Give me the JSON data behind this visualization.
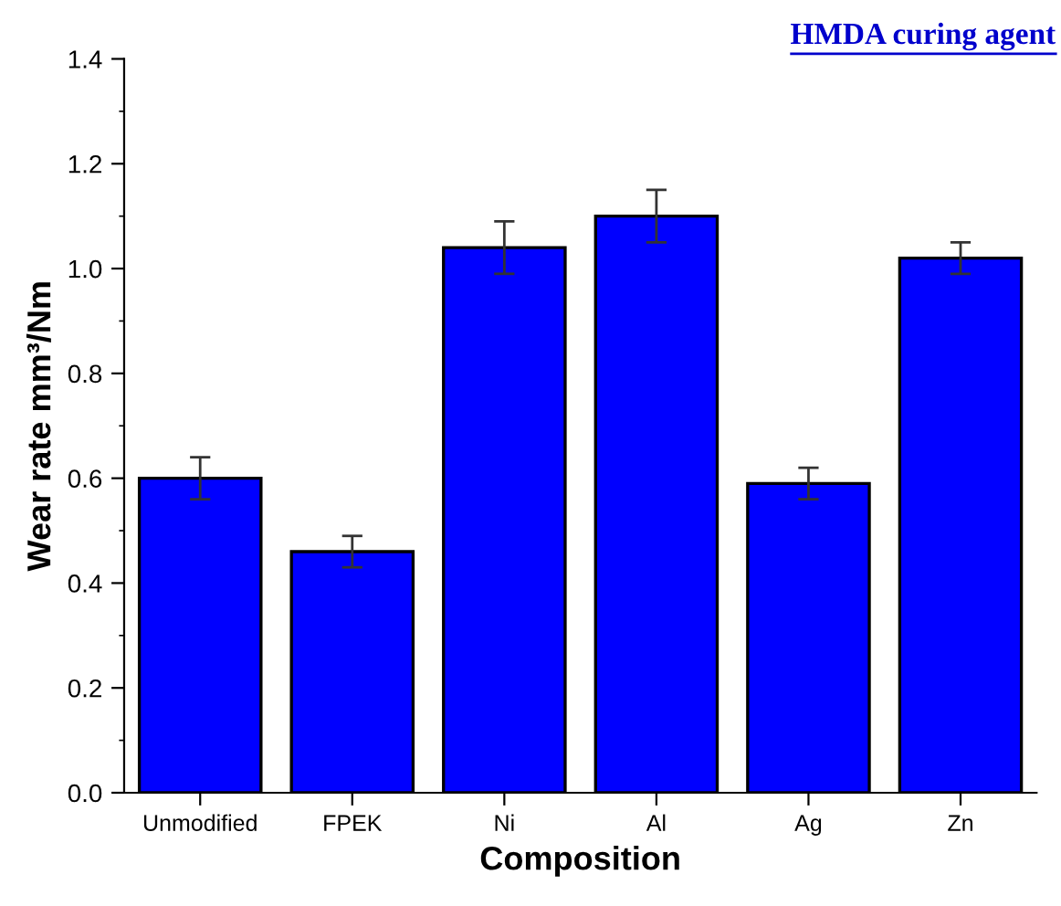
{
  "chart_data": {
    "type": "bar",
    "title": "HMDA curing agent",
    "xlabel": "Composition",
    "ylabel": "Wear rate mm³/Nm",
    "categories": [
      "Unmodified",
      "FPEK",
      "Ni",
      "Al",
      "Ag",
      "Zn"
    ],
    "values": [
      0.6,
      0.46,
      1.04,
      1.1,
      0.59,
      1.02
    ],
    "errors": [
      0.04,
      0.03,
      0.05,
      0.05,
      0.03,
      0.03
    ],
    "color": "#0000ff",
    "ylim": [
      0,
      1.4
    ],
    "yticks": [
      {
        "value": 0,
        "label": "0.0"
      },
      0.2,
      0.4,
      0.6,
      0.8,
      {
        "value": 1,
        "label": "1.0"
      },
      1.2,
      1.4
    ],
    "grid": false,
    "legend": false
  }
}
